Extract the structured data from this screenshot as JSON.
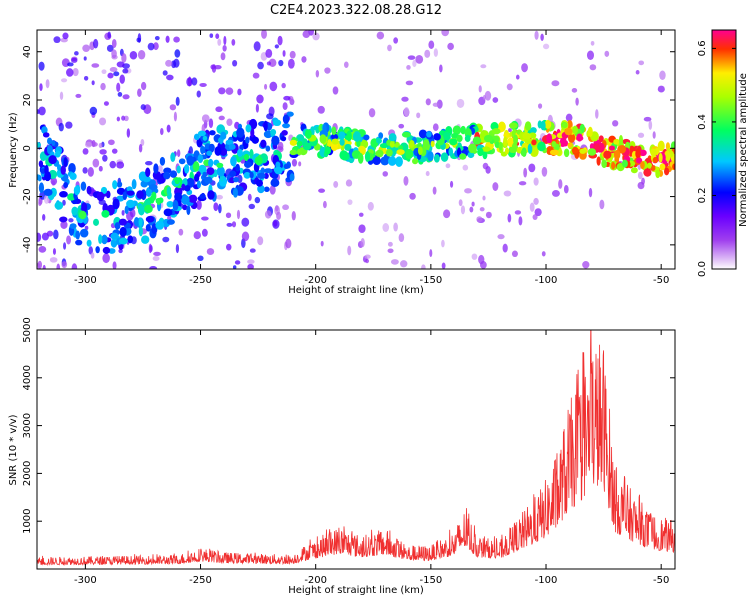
{
  "title": "C2E4.2023.322.08.28.G12",
  "chart_data": [
    {
      "type": "heatmap",
      "xlabel": "Height of straight line (km)",
      "ylabel": "Frequency (Hz)",
      "xlim": [
        -321,
        -44
      ],
      "ylim": [
        -50,
        49
      ],
      "x_ticks": [
        -300,
        -250,
        -200,
        -150,
        -100,
        -50
      ],
      "y_ticks": [
        -40,
        -20,
        0,
        20,
        40
      ],
      "colorbar": {
        "label": "Normalized spectral amplitude",
        "range": [
          0.0,
          0.65
        ],
        "ticks": [
          0.0,
          0.2,
          0.4,
          0.6
        ],
        "colormap": "rainbow (violet → blue → cyan → green → yellow → red)"
      },
      "ridge": {
        "description": "Dominant spectral band, frequency (Hz) vs height (km)",
        "x": [
          -321,
          -300,
          -280,
          -260,
          -250,
          -240,
          -220,
          -205,
          -190,
          -170,
          -150,
          -130,
          -110,
          -90,
          -70,
          -50,
          -44
        ],
        "y": [
          0,
          -30,
          -28,
          -15,
          -8,
          -5,
          -3,
          4,
          2,
          0,
          1,
          3,
          4,
          4,
          -2,
          -5,
          -5
        ]
      }
    },
    {
      "type": "line",
      "xlabel": "Height of straight line (km)",
      "ylabel": "SNR (10 * v/v)",
      "xlim": [
        -321,
        -44
      ],
      "ylim": [
        0,
        5000
      ],
      "x_ticks": [
        -300,
        -250,
        -200,
        -150,
        -100,
        -50
      ],
      "y_ticks": [
        1000,
        2000,
        3000,
        4000,
        5000
      ],
      "series": [
        {
          "color": "#f03030",
          "envelope_x": [
            -321,
            -280,
            -260,
            -250,
            -240,
            -210,
            -205,
            -190,
            -180,
            -170,
            -160,
            -150,
            -140,
            -135,
            -130,
            -120,
            -112,
            -105,
            -100,
            -95,
            -90,
            -85,
            -80,
            -75,
            -70,
            -65,
            -60,
            -55,
            -50,
            -44
          ],
          "envelope_y": [
            250,
            280,
            300,
            450,
            350,
            300,
            500,
            900,
            700,
            850,
            500,
            500,
            800,
            1300,
            700,
            600,
            1100,
            1500,
            1900,
            2500,
            3500,
            4000,
            5000,
            4800,
            2200,
            1800,
            1500,
            1200,
            1100,
            1000
          ]
        }
      ]
    }
  ]
}
